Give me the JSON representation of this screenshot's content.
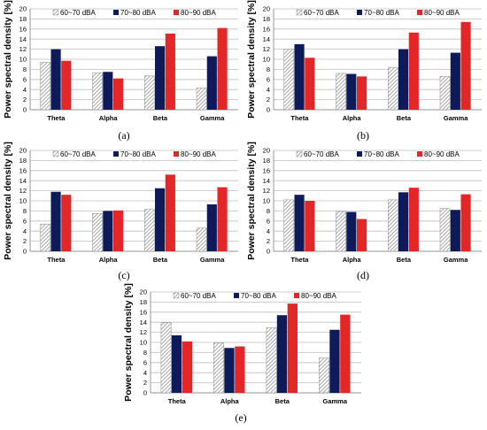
{
  "colors": {
    "series1_hatch": "#a6a6a6",
    "series2": "#0d1b5a",
    "series3": "#e32626",
    "grid": "#bfbfbf"
  },
  "chart_data": [
    {
      "type": "bar",
      "caption": "(a)",
      "ylabel": "Power spectral density [%]",
      "ylim": [
        0,
        20
      ],
      "yticks": [
        0,
        2,
        4,
        6,
        8,
        10,
        12,
        14,
        16,
        18,
        20
      ],
      "grid": true,
      "legend_position": "top",
      "categories": [
        "Theta",
        "Alpha",
        "Beta",
        "Gamma"
      ],
      "series": [
        {
          "name": "60~70 dBA",
          "values": [
            9.4,
            7.3,
            6.7,
            4.3
          ]
        },
        {
          "name": "70~80 dBA",
          "values": [
            12.0,
            7.5,
            12.6,
            10.6
          ]
        },
        {
          "name": "80~90 dBA",
          "values": [
            9.7,
            6.2,
            15.1,
            16.2
          ]
        }
      ]
    },
    {
      "type": "bar",
      "caption": "(b)",
      "ylabel": "Power spectral density [%]",
      "ylim": [
        0,
        20
      ],
      "yticks": [
        0,
        2,
        4,
        6,
        8,
        10,
        12,
        14,
        16,
        18,
        20
      ],
      "grid": true,
      "legend_position": "top",
      "categories": [
        "Theta",
        "Alpha",
        "Beta",
        "Gamma"
      ],
      "series": [
        {
          "name": "60~70 dBA",
          "values": [
            12.0,
            7.2,
            8.4,
            6.6
          ]
        },
        {
          "name": "70~80 dBA",
          "values": [
            13.0,
            7.1,
            12.0,
            11.3
          ]
        },
        {
          "name": "80~90 dBA",
          "values": [
            10.3,
            6.6,
            15.3,
            17.4
          ]
        }
      ]
    },
    {
      "type": "bar",
      "caption": "(c)",
      "ylabel": "Power spectral density [%]",
      "ylim": [
        0,
        20
      ],
      "yticks": [
        0,
        2,
        4,
        6,
        8,
        10,
        12,
        14,
        16,
        18,
        20
      ],
      "grid": true,
      "legend_position": "top",
      "categories": [
        "Theta",
        "Alpha",
        "Beta",
        "Gamma"
      ],
      "series": [
        {
          "name": "60~70 dBA",
          "values": [
            5.4,
            7.5,
            8.3,
            4.6
          ]
        },
        {
          "name": "70~80 dBA",
          "values": [
            11.8,
            8.0,
            12.5,
            9.3
          ]
        },
        {
          "name": "80~90 dBA",
          "values": [
            11.2,
            8.1,
            15.2,
            12.7
          ]
        }
      ]
    },
    {
      "type": "bar",
      "caption": "(d)",
      "ylabel": "Power spectral density [%]",
      "ylim": [
        0,
        20
      ],
      "yticks": [
        0,
        2,
        4,
        6,
        8,
        10,
        12,
        14,
        16,
        18,
        20
      ],
      "grid": true,
      "legend_position": "top",
      "categories": [
        "Theta",
        "Alpha",
        "Beta",
        "Gamma"
      ],
      "series": [
        {
          "name": "60~70 dBA",
          "values": [
            10.2,
            7.9,
            10.2,
            8.5
          ]
        },
        {
          "name": "70~80 dBA",
          "values": [
            11.2,
            7.8,
            11.7,
            8.2
          ]
        },
        {
          "name": "80~90 dBA",
          "values": [
            10.0,
            6.4,
            12.6,
            11.3
          ]
        }
      ]
    },
    {
      "type": "bar",
      "caption": "(e)",
      "ylabel": "Power spectral density [%]",
      "ylim": [
        0,
        20
      ],
      "yticks": [
        0,
        2,
        4,
        6,
        8,
        10,
        12,
        14,
        16,
        18,
        20
      ],
      "grid": true,
      "legend_position": "top",
      "categories": [
        "Theta",
        "Alpha",
        "Beta",
        "Gamma"
      ],
      "series": [
        {
          "name": "60~70 dBA",
          "values": [
            13.9,
            9.9,
            12.9,
            6.9
          ]
        },
        {
          "name": "70~80 dBA",
          "values": [
            11.4,
            8.9,
            15.4,
            12.5
          ]
        },
        {
          "name": "80~90 dBA",
          "values": [
            10.2,
            9.2,
            17.7,
            15.5
          ]
        }
      ]
    }
  ]
}
